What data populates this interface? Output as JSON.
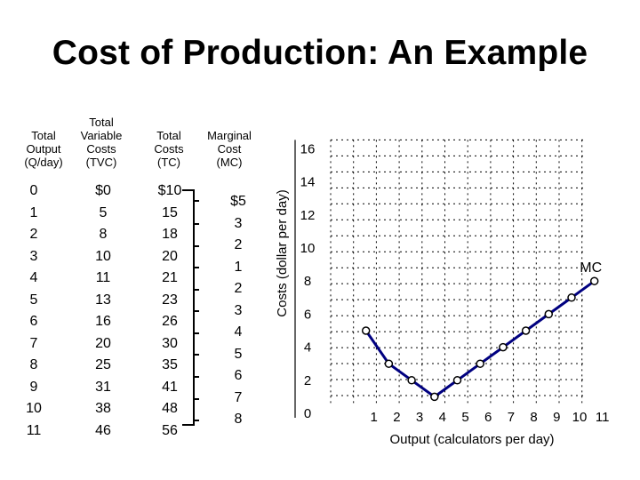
{
  "title": "Cost of Production: An Example",
  "table": {
    "headers": [
      [
        "Total",
        "Output",
        "(Q/day)"
      ],
      [
        "Total",
        "Variable",
        "Costs",
        "(TVC)"
      ],
      [
        "Total",
        "Costs",
        "(TC)"
      ],
      [
        "Marginal",
        "Cost",
        "(MC)"
      ]
    ],
    "output": [
      "0",
      "1",
      "2",
      "3",
      "4",
      "5",
      "6",
      "7",
      "8",
      "9",
      "10",
      "11"
    ],
    "tvc": [
      "$0",
      "5",
      "8",
      "10",
      "11",
      "13",
      "16",
      "20",
      "25",
      "31",
      "38",
      "46"
    ],
    "tc": [
      "$10",
      "15",
      "18",
      "20",
      "21",
      "23",
      "26",
      "30",
      "35",
      "41",
      "48",
      "56"
    ],
    "mc": [
      "$5",
      "3",
      "2",
      "1",
      "2",
      "3",
      "4",
      "5",
      "6",
      "7",
      "8"
    ]
  },
  "chart_data": {
    "type": "line",
    "title": "",
    "xlabel": "Output (calculators per day)",
    "ylabel": "Costs (dollar per day)",
    "x_ticks": [
      0,
      1,
      2,
      3,
      4,
      5,
      6,
      7,
      8,
      9,
      10,
      11
    ],
    "y_ticks": [
      0,
      2,
      4,
      6,
      8,
      10,
      12,
      14,
      16
    ],
    "xlim": [
      0,
      11
    ],
    "ylim": [
      0,
      16
    ],
    "grid": true,
    "series": [
      {
        "name": "MC",
        "color": "#000080",
        "x": [
          1,
          2,
          3,
          4,
          5,
          6,
          7,
          8,
          9,
          10,
          11
        ],
        "y": [
          5,
          3,
          2,
          1,
          2,
          3,
          4,
          5,
          6,
          7,
          8
        ]
      }
    ]
  }
}
